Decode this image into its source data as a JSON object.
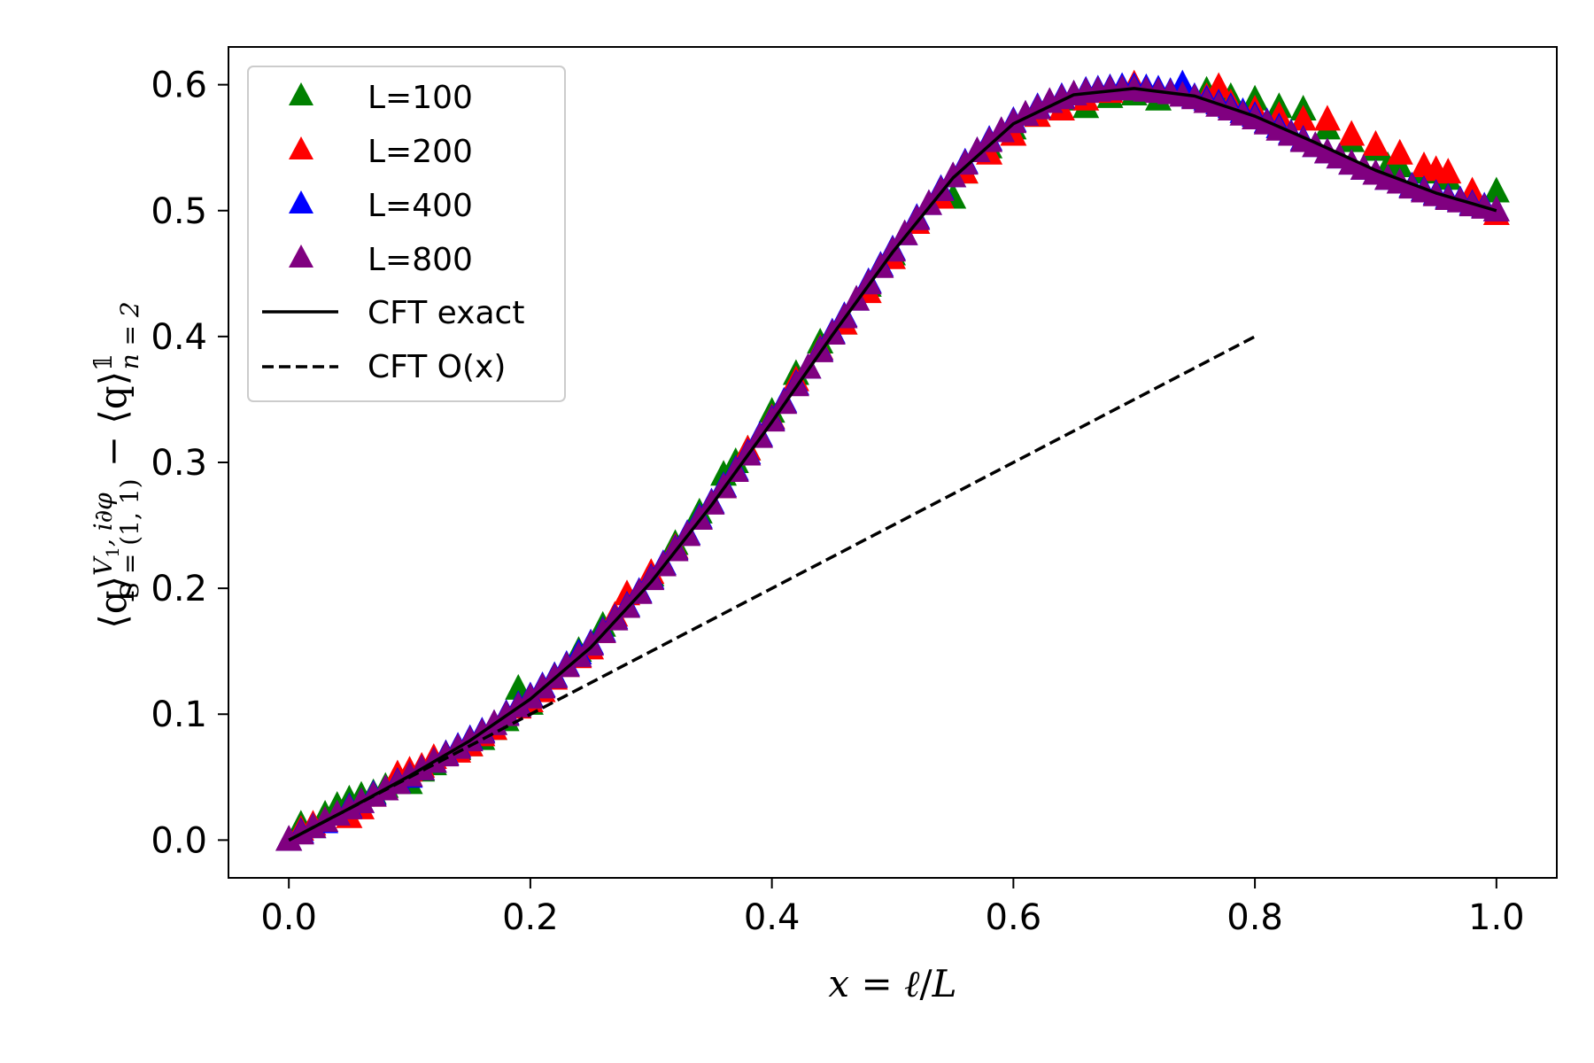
{
  "chart_data": {
    "type": "scatter",
    "title": "",
    "xlabel_parts": [
      "x",
      " = ",
      "ℓ",
      "/",
      "L"
    ],
    "ylabel_parts": {
      "open": "⟨q⟩",
      "sup1": "V",
      "sup1_sub": "1",
      "sup1_rest": ", i∂φ",
      "sub1": "S = (1, 1)",
      "minus": " − ",
      "open2": "⟨q⟩",
      "sup2": "𝟙",
      "sub2": "n = 2"
    },
    "xlim": [
      -0.05,
      1.05
    ],
    "ylim": [
      -0.03,
      0.63
    ],
    "xticks": [
      0.0,
      0.2,
      0.4,
      0.6,
      0.8,
      1.0
    ],
    "xtick_labels": [
      "0.0",
      "0.2",
      "0.4",
      "0.6",
      "0.8",
      "1.0"
    ],
    "yticks": [
      0.0,
      0.1,
      0.2,
      0.3,
      0.4,
      0.5,
      0.6
    ],
    "ytick_labels": [
      "0.0",
      "0.1",
      "0.2",
      "0.3",
      "0.4",
      "0.5",
      "0.6"
    ],
    "grid": false,
    "legend_position": "upper-left",
    "series": [
      {
        "name": "L=100",
        "kind": "scatter",
        "marker": "triangle",
        "color": "#008000",
        "x": [
          0.0,
          0.01,
          0.02,
          0.03,
          0.04,
          0.05,
          0.06,
          0.07,
          0.08,
          0.09,
          0.1,
          0.11,
          0.12,
          0.13,
          0.14,
          0.15,
          0.16,
          0.17,
          0.18,
          0.19,
          0.2,
          0.22,
          0.24,
          0.26,
          0.28,
          0.3,
          0.32,
          0.34,
          0.36,
          0.37,
          0.38,
          0.4,
          0.42,
          0.44,
          0.46,
          0.48,
          0.5,
          0.52,
          0.54,
          0.55,
          0.56,
          0.58,
          0.6,
          0.62,
          0.64,
          0.66,
          0.68,
          0.7,
          0.72,
          0.74,
          0.76,
          0.78,
          0.8,
          0.82,
          0.84,
          0.86,
          0.88,
          0.9,
          0.91,
          0.92,
          0.94,
          0.96,
          0.98,
          1.0
        ],
        "y": [
          0.0,
          0.012,
          0.01,
          0.02,
          0.027,
          0.032,
          0.035,
          0.037,
          0.042,
          0.05,
          0.045,
          0.055,
          0.06,
          0.068,
          0.072,
          0.075,
          0.08,
          0.088,
          0.095,
          0.12,
          0.108,
          0.13,
          0.15,
          0.17,
          0.185,
          0.21,
          0.235,
          0.26,
          0.29,
          0.3,
          0.31,
          0.34,
          0.37,
          0.395,
          0.41,
          0.44,
          0.465,
          0.49,
          0.515,
          0.51,
          0.53,
          0.55,
          0.565,
          0.575,
          0.588,
          0.582,
          0.59,
          0.592,
          0.588,
          0.596,
          0.595,
          0.59,
          0.588,
          0.582,
          0.58,
          0.565,
          0.555,
          0.548,
          0.535,
          0.535,
          0.53,
          0.525,
          0.51,
          0.515
        ]
      },
      {
        "name": "L=200",
        "kind": "scatter",
        "marker": "triangle",
        "color": "#ff0000",
        "x": [
          0.0,
          0.01,
          0.02,
          0.03,
          0.04,
          0.05,
          0.06,
          0.07,
          0.08,
          0.09,
          0.1,
          0.11,
          0.12,
          0.13,
          0.14,
          0.15,
          0.16,
          0.17,
          0.18,
          0.19,
          0.2,
          0.21,
          0.22,
          0.23,
          0.24,
          0.25,
          0.26,
          0.27,
          0.28,
          0.3,
          0.32,
          0.34,
          0.36,
          0.38,
          0.4,
          0.42,
          0.44,
          0.46,
          0.48,
          0.5,
          0.52,
          0.54,
          0.56,
          0.58,
          0.6,
          0.62,
          0.64,
          0.66,
          0.68,
          0.7,
          0.72,
          0.74,
          0.76,
          0.77,
          0.78,
          0.8,
          0.82,
          0.84,
          0.86,
          0.88,
          0.9,
          0.92,
          0.94,
          0.95,
          0.96,
          0.98,
          1.0
        ],
        "y": [
          0.0,
          0.008,
          0.012,
          0.015,
          0.02,
          0.018,
          0.025,
          0.035,
          0.04,
          0.052,
          0.055,
          0.058,
          0.065,
          0.068,
          0.07,
          0.075,
          0.083,
          0.088,
          0.1,
          0.105,
          0.11,
          0.118,
          0.128,
          0.138,
          0.145,
          0.152,
          0.165,
          0.178,
          0.195,
          0.212,
          0.232,
          0.255,
          0.28,
          0.31,
          0.335,
          0.365,
          0.39,
          0.41,
          0.435,
          0.462,
          0.49,
          0.51,
          0.53,
          0.545,
          0.56,
          0.575,
          0.58,
          0.588,
          0.594,
          0.6,
          0.595,
          0.598,
          0.59,
          0.598,
          0.585,
          0.58,
          0.575,
          0.572,
          0.572,
          0.56,
          0.552,
          0.545,
          0.535,
          0.532,
          0.53,
          0.515,
          0.497
        ]
      },
      {
        "name": "L=400",
        "kind": "scatter",
        "marker": "triangle",
        "color": "#0000ff",
        "x": [
          0.0,
          0.01,
          0.02,
          0.03,
          0.04,
          0.05,
          0.06,
          0.07,
          0.08,
          0.09,
          0.1,
          0.11,
          0.12,
          0.13,
          0.14,
          0.15,
          0.16,
          0.17,
          0.18,
          0.19,
          0.2,
          0.21,
          0.22,
          0.23,
          0.24,
          0.25,
          0.26,
          0.27,
          0.28,
          0.29,
          0.3,
          0.31,
          0.32,
          0.33,
          0.34,
          0.35,
          0.36,
          0.37,
          0.38,
          0.39,
          0.4,
          0.41,
          0.42,
          0.43,
          0.44,
          0.45,
          0.46,
          0.47,
          0.48,
          0.49,
          0.5,
          0.51,
          0.52,
          0.53,
          0.54,
          0.55,
          0.56,
          0.57,
          0.58,
          0.59,
          0.6,
          0.61,
          0.62,
          0.63,
          0.64,
          0.65,
          0.66,
          0.67,
          0.68,
          0.69,
          0.7,
          0.71,
          0.72,
          0.73,
          0.74,
          0.75,
          0.76,
          0.77,
          0.78,
          0.79,
          0.8,
          0.81,
          0.82,
          0.83,
          0.84,
          0.85,
          0.86,
          0.87,
          0.88,
          0.89,
          0.9,
          0.91,
          0.92,
          0.93,
          0.94,
          0.95,
          0.96,
          0.97,
          0.98,
          0.99,
          1.0
        ],
        "y": [
          0.0,
          0.006,
          0.01,
          0.014,
          0.02,
          0.026,
          0.03,
          0.036,
          0.04,
          0.046,
          0.05,
          0.056,
          0.062,
          0.068,
          0.074,
          0.08,
          0.086,
          0.092,
          0.1,
          0.107,
          0.114,
          0.122,
          0.13,
          0.139,
          0.148,
          0.156,
          0.166,
          0.176,
          0.186,
          0.197,
          0.208,
          0.219,
          0.231,
          0.243,
          0.256,
          0.268,
          0.281,
          0.294,
          0.307,
          0.321,
          0.334,
          0.348,
          0.362,
          0.375,
          0.389,
          0.403,
          0.416,
          0.429,
          0.443,
          0.456,
          0.469,
          0.481,
          0.494,
          0.505,
          0.517,
          0.527,
          0.538,
          0.547,
          0.556,
          0.563,
          0.571,
          0.576,
          0.582,
          0.586,
          0.59,
          0.592,
          0.595,
          0.596,
          0.597,
          0.598,
          0.598,
          0.597,
          0.596,
          0.594,
          0.6,
          0.59,
          0.588,
          0.585,
          0.582,
          0.578,
          0.575,
          0.57,
          0.566,
          0.561,
          0.556,
          0.551,
          0.546,
          0.542,
          0.537,
          0.533,
          0.529,
          0.525,
          0.522,
          0.519,
          0.516,
          0.513,
          0.51,
          0.508,
          0.505,
          0.503,
          0.5
        ]
      },
      {
        "name": "L=800",
        "kind": "scatter",
        "marker": "triangle",
        "color": "#800080",
        "x": [
          0.0,
          0.01,
          0.02,
          0.03,
          0.04,
          0.05,
          0.06,
          0.07,
          0.08,
          0.09,
          0.1,
          0.11,
          0.12,
          0.13,
          0.14,
          0.15,
          0.16,
          0.17,
          0.18,
          0.19,
          0.2,
          0.21,
          0.22,
          0.23,
          0.24,
          0.25,
          0.26,
          0.27,
          0.28,
          0.29,
          0.3,
          0.31,
          0.32,
          0.33,
          0.34,
          0.35,
          0.36,
          0.37,
          0.38,
          0.39,
          0.4,
          0.41,
          0.42,
          0.43,
          0.44,
          0.45,
          0.46,
          0.47,
          0.48,
          0.49,
          0.5,
          0.51,
          0.52,
          0.53,
          0.54,
          0.55,
          0.56,
          0.57,
          0.58,
          0.59,
          0.6,
          0.61,
          0.62,
          0.63,
          0.64,
          0.65,
          0.66,
          0.67,
          0.68,
          0.69,
          0.7,
          0.71,
          0.72,
          0.73,
          0.74,
          0.75,
          0.76,
          0.77,
          0.78,
          0.79,
          0.8,
          0.81,
          0.82,
          0.83,
          0.84,
          0.85,
          0.86,
          0.87,
          0.88,
          0.89,
          0.9,
          0.91,
          0.92,
          0.93,
          0.94,
          0.95,
          0.96,
          0.97,
          0.98,
          0.99,
          1.0
        ],
        "y": [
          0.0,
          0.005,
          0.01,
          0.015,
          0.02,
          0.025,
          0.03,
          0.035,
          0.04,
          0.045,
          0.051,
          0.056,
          0.062,
          0.067,
          0.073,
          0.079,
          0.085,
          0.092,
          0.099,
          0.106,
          0.113,
          0.121,
          0.129,
          0.138,
          0.146,
          0.155,
          0.165,
          0.175,
          0.185,
          0.196,
          0.207,
          0.218,
          0.23,
          0.242,
          0.255,
          0.267,
          0.28,
          0.293,
          0.306,
          0.32,
          0.333,
          0.347,
          0.361,
          0.375,
          0.388,
          0.402,
          0.415,
          0.429,
          0.442,
          0.455,
          0.468,
          0.481,
          0.493,
          0.505,
          0.516,
          0.527,
          0.537,
          0.547,
          0.555,
          0.563,
          0.57,
          0.576,
          0.581,
          0.586,
          0.589,
          0.592,
          0.594,
          0.595,
          0.596,
          0.596,
          0.596,
          0.595,
          0.594,
          0.593,
          0.591,
          0.589,
          0.586,
          0.583,
          0.58,
          0.576,
          0.573,
          0.569,
          0.564,
          0.56,
          0.555,
          0.551,
          0.546,
          0.542,
          0.537,
          0.533,
          0.529,
          0.525,
          0.522,
          0.518,
          0.515,
          0.512,
          0.509,
          0.507,
          0.504,
          0.502,
          0.5
        ]
      },
      {
        "name": "CFT exact",
        "kind": "line",
        "style": "solid",
        "color": "#000000",
        "x": [
          0.0,
          0.05,
          0.1,
          0.15,
          0.2,
          0.25,
          0.3,
          0.35,
          0.4,
          0.45,
          0.5,
          0.55,
          0.6,
          0.65,
          0.7,
          0.75,
          0.8,
          0.85,
          0.9,
          0.95,
          1.0
        ],
        "y": [
          0.0,
          0.025,
          0.051,
          0.079,
          0.112,
          0.153,
          0.205,
          0.266,
          0.332,
          0.401,
          0.467,
          0.526,
          0.569,
          0.592,
          0.597,
          0.591,
          0.575,
          0.554,
          0.532,
          0.514,
          0.5
        ]
      },
      {
        "name": "CFT O(x)",
        "kind": "line",
        "style": "dashed",
        "color": "#000000",
        "x": [
          0.0,
          0.8
        ],
        "y": [
          0.0,
          0.4
        ]
      }
    ]
  }
}
